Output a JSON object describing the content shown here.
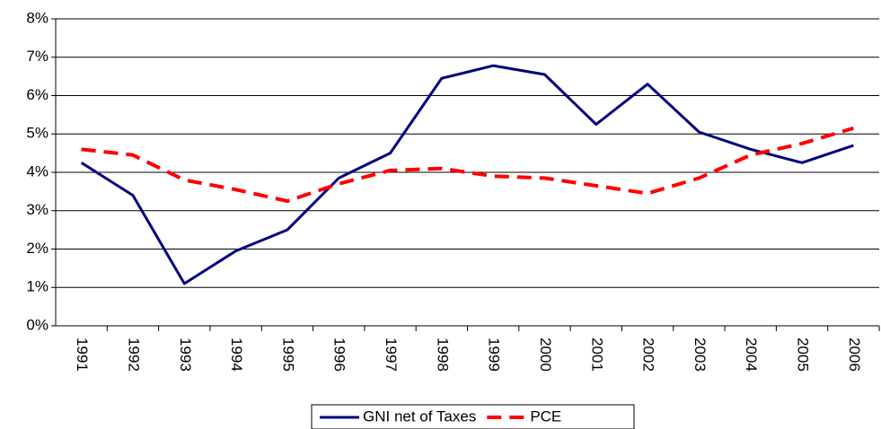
{
  "chart_data": {
    "type": "line",
    "categories": [
      "1991",
      "1992",
      "1993",
      "1994",
      "1995",
      "1996",
      "1997",
      "1998",
      "1999",
      "2000",
      "2001",
      "2002",
      "2003",
      "2004",
      "2005",
      "2006"
    ],
    "series": [
      {
        "name": "GNI net of Taxes",
        "color": "#000080",
        "dash": false,
        "values": [
          4.25,
          3.4,
          1.1,
          1.95,
          2.5,
          3.85,
          4.5,
          6.45,
          6.78,
          6.55,
          5.25,
          6.3,
          5.05,
          4.6,
          4.25,
          4.7
        ]
      },
      {
        "name": "PCE",
        "color": "#ff0000",
        "dash": true,
        "values": [
          4.6,
          4.45,
          3.8,
          3.55,
          3.25,
          3.7,
          4.05,
          4.1,
          3.9,
          3.85,
          3.65,
          3.45,
          3.85,
          4.45,
          4.75,
          5.15
        ]
      }
    ],
    "ylim": [
      0,
      8
    ],
    "yticks": [
      {
        "value": 0,
        "label": "0%"
      },
      {
        "value": 1,
        "label": "1%"
      },
      {
        "value": 2,
        "label": "2%"
      },
      {
        "value": 3,
        "label": "3%"
      },
      {
        "value": 4,
        "label": "4%"
      },
      {
        "value": 5,
        "label": "5%"
      },
      {
        "value": 6,
        "label": "6%"
      },
      {
        "value": 7,
        "label": "7%"
      },
      {
        "value": 8,
        "label": "8%"
      }
    ],
    "grid": true,
    "legend": "bottom"
  }
}
